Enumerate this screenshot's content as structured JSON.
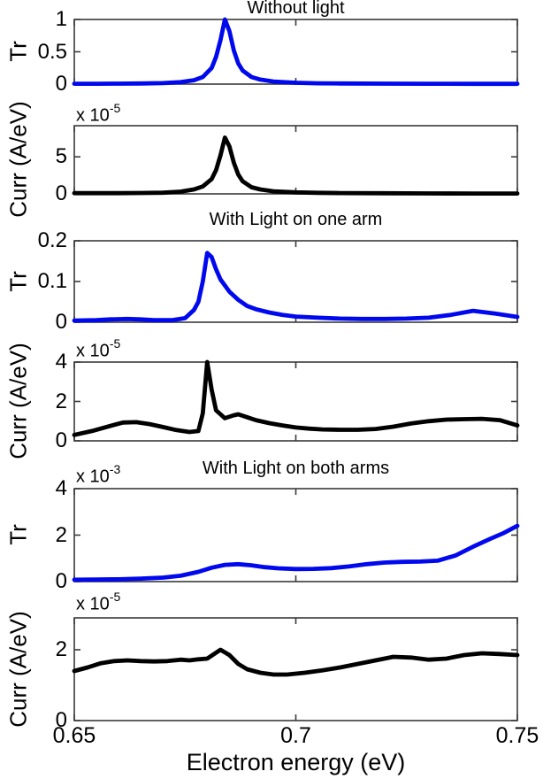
{
  "figure": {
    "xlabel": "Electron energy (eV)",
    "xlim": [
      0.65,
      0.75
    ],
    "xticks": [
      0.65,
      0.7,
      0.75
    ],
    "xtick_labels": [
      "0.65",
      "0.7",
      "0.75"
    ],
    "axis_color": "#3a3a3a",
    "blue": "#0008ee",
    "black": "#000000"
  },
  "chart_data": [
    {
      "type": "line",
      "title": "Without light",
      "ylabel": "Tr",
      "color": "#0008ee",
      "ylim": [
        0,
        1
      ],
      "yticks": [
        0,
        0.5,
        1
      ],
      "ytick_labels": [
        "0",
        "0.5",
        "1"
      ],
      "x": [
        0.65,
        0.655,
        0.66,
        0.665,
        0.67,
        0.674,
        0.677,
        0.679,
        0.681,
        0.682,
        0.683,
        0.684,
        0.685,
        0.686,
        0.687,
        0.688,
        0.69,
        0.692,
        0.695,
        0.7,
        0.705,
        0.71,
        0.72,
        0.73,
        0.74,
        0.75
      ],
      "y": [
        0.005,
        0.006,
        0.007,
        0.009,
        0.015,
        0.03,
        0.06,
        0.11,
        0.25,
        0.42,
        0.68,
        1.0,
        0.82,
        0.52,
        0.32,
        0.21,
        0.11,
        0.07,
        0.04,
        0.02,
        0.013,
        0.01,
        0.007,
        0.005,
        0.004,
        0.004
      ]
    },
    {
      "type": "line",
      "title": "",
      "ylabel": "Curr (A/eV)",
      "scale_prefix": "x 10",
      "scale_exp": "-5",
      "color": "#000000",
      "ylim": [
        0,
        9.2
      ],
      "yticks": [
        0,
        5
      ],
      "ytick_labels": [
        "0",
        "5"
      ],
      "x": [
        0.65,
        0.66,
        0.665,
        0.67,
        0.674,
        0.677,
        0.679,
        0.681,
        0.682,
        0.683,
        0.684,
        0.685,
        0.686,
        0.687,
        0.688,
        0.69,
        0.692,
        0.695,
        0.7,
        0.705,
        0.71,
        0.72,
        0.73,
        0.74,
        0.75
      ],
      "y": [
        0.1,
        0.1,
        0.12,
        0.15,
        0.3,
        0.6,
        1.0,
        2.0,
        3.2,
        5.2,
        7.6,
        6.4,
        4.2,
        2.6,
        1.7,
        0.9,
        0.6,
        0.35,
        0.2,
        0.14,
        0.11,
        0.08,
        0.06,
        0.05,
        0.05
      ]
    },
    {
      "type": "line",
      "title": "With Light on one arm",
      "ylabel": "Tr",
      "color": "#0008ee",
      "ylim": [
        0,
        0.2
      ],
      "yticks": [
        0,
        0.1,
        0.2
      ],
      "ytick_labels": [
        "0",
        "0.1",
        "0.2"
      ],
      "x": [
        0.65,
        0.655,
        0.658,
        0.662,
        0.665,
        0.668,
        0.672,
        0.675,
        0.677,
        0.678,
        0.679,
        0.68,
        0.681,
        0.682,
        0.683,
        0.685,
        0.687,
        0.689,
        0.691,
        0.694,
        0.697,
        0.7,
        0.705,
        0.71,
        0.715,
        0.72,
        0.725,
        0.73,
        0.735,
        0.74,
        0.745,
        0.75
      ],
      "y": [
        0.004,
        0.005,
        0.007,
        0.008,
        0.007,
        0.005,
        0.005,
        0.01,
        0.03,
        0.05,
        0.1,
        0.17,
        0.16,
        0.13,
        0.105,
        0.075,
        0.055,
        0.04,
        0.032,
        0.024,
        0.018,
        0.014,
        0.011,
        0.009,
        0.008,
        0.008,
        0.009,
        0.011,
        0.018,
        0.028,
        0.021,
        0.013
      ]
    },
    {
      "type": "line",
      "title": "",
      "ylabel": "Curr (A/eV)",
      "scale_prefix": "x 10",
      "scale_exp": "-5",
      "color": "#000000",
      "ylim": [
        0,
        4
      ],
      "yticks": [
        0,
        2,
        4
      ],
      "ytick_labels": [
        "0",
        "2",
        "4"
      ],
      "x": [
        0.65,
        0.654,
        0.658,
        0.661,
        0.664,
        0.667,
        0.67,
        0.673,
        0.676,
        0.678,
        0.679,
        0.68,
        0.681,
        0.682,
        0.683,
        0.684,
        0.686,
        0.687,
        0.689,
        0.691,
        0.694,
        0.697,
        0.7,
        0.703,
        0.706,
        0.71,
        0.714,
        0.718,
        0.722,
        0.726,
        0.73,
        0.734,
        0.738,
        0.742,
        0.746,
        0.75
      ],
      "y": [
        0.3,
        0.5,
        0.75,
        0.93,
        0.95,
        0.85,
        0.7,
        0.55,
        0.45,
        0.5,
        1.4,
        4.0,
        2.6,
        1.55,
        1.35,
        1.15,
        1.3,
        1.35,
        1.2,
        1.05,
        0.9,
        0.78,
        0.68,
        0.62,
        0.58,
        0.56,
        0.56,
        0.6,
        0.72,
        0.88,
        1.0,
        1.08,
        1.1,
        1.12,
        1.05,
        0.78
      ]
    },
    {
      "type": "line",
      "title": "With Light on both arms",
      "ylabel": "Tr",
      "scale_prefix": "x 10",
      "scale_exp": "-3",
      "color": "#0008ee",
      "ylim": [
        0,
        4
      ],
      "yticks": [
        0,
        2,
        4
      ],
      "ytick_labels": [
        "0",
        "2",
        "4"
      ],
      "x": [
        0.65,
        0.655,
        0.66,
        0.665,
        0.67,
        0.674,
        0.678,
        0.681,
        0.684,
        0.687,
        0.69,
        0.693,
        0.696,
        0.7,
        0.704,
        0.708,
        0.712,
        0.716,
        0.72,
        0.724,
        0.728,
        0.732,
        0.736,
        0.74,
        0.744,
        0.747,
        0.75
      ],
      "y": [
        0.08,
        0.09,
        0.1,
        0.13,
        0.17,
        0.25,
        0.42,
        0.6,
        0.72,
        0.75,
        0.7,
        0.62,
        0.57,
        0.54,
        0.55,
        0.58,
        0.65,
        0.75,
        0.82,
        0.85,
        0.86,
        0.9,
        1.12,
        1.5,
        1.85,
        2.1,
        2.4
      ]
    },
    {
      "type": "line",
      "title": "",
      "ylabel": "Curr (A/eV)",
      "scale_prefix": "x 10",
      "scale_exp": "-5",
      "color": "#000000",
      "ylim": [
        0,
        2.9
      ],
      "yticks": [
        0,
        2
      ],
      "ytick_labels": [
        "0",
        "2"
      ],
      "x": [
        0.65,
        0.653,
        0.656,
        0.659,
        0.662,
        0.665,
        0.668,
        0.671,
        0.674,
        0.676,
        0.678,
        0.68,
        0.683,
        0.685,
        0.687,
        0.689,
        0.692,
        0.695,
        0.698,
        0.702,
        0.706,
        0.71,
        0.714,
        0.718,
        0.722,
        0.726,
        0.73,
        0.734,
        0.738,
        0.742,
        0.746,
        0.75
      ],
      "y": [
        1.4,
        1.5,
        1.62,
        1.68,
        1.7,
        1.68,
        1.67,
        1.68,
        1.72,
        1.7,
        1.73,
        1.75,
        2.0,
        1.85,
        1.6,
        1.45,
        1.35,
        1.3,
        1.3,
        1.35,
        1.42,
        1.5,
        1.6,
        1.7,
        1.8,
        1.78,
        1.72,
        1.75,
        1.85,
        1.9,
        1.88,
        1.85
      ]
    }
  ]
}
